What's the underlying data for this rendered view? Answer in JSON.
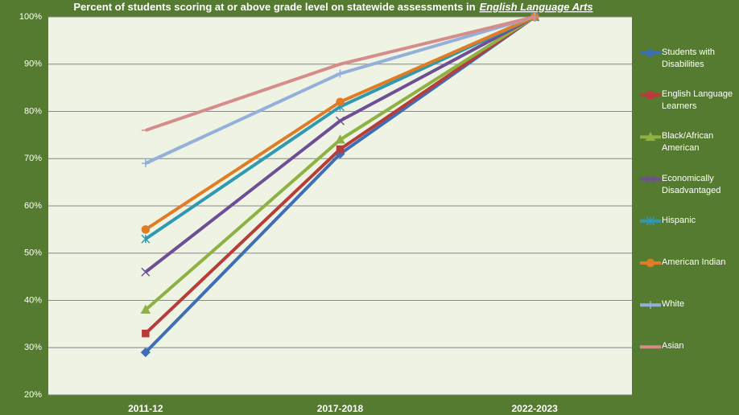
{
  "chart_data": {
    "type": "line",
    "title": {
      "text": "Percent of students scoring at or above grade level on statewide assessments in",
      "emphasis": "English Language Arts"
    },
    "categories": [
      "2011-12",
      "2017-2018",
      "2022-2023"
    ],
    "ylim": [
      20,
      100
    ],
    "yticks": [
      {
        "value": 20,
        "label": "20%"
      },
      {
        "value": 30,
        "label": "30%"
      },
      {
        "value": 40,
        "label": "40%"
      },
      {
        "value": 50,
        "label": "50%"
      },
      {
        "value": 60,
        "label": "60%"
      },
      {
        "value": 70,
        "label": "70%"
      },
      {
        "value": 80,
        "label": "80%"
      },
      {
        "value": 90,
        "label": "90%"
      },
      {
        "value": 100,
        "label": "100%"
      }
    ],
    "grid": true,
    "legend": "right",
    "series": [
      {
        "name": "Students with Disabilities",
        "color": "#3d6fb6",
        "marker": "diamond",
        "values": [
          29,
          71,
          100
        ]
      },
      {
        "name": "English Language Learners",
        "color": "#b73c3a",
        "marker": "square",
        "values": [
          33,
          72,
          100
        ]
      },
      {
        "name": "Black/African American",
        "color": "#8db143",
        "marker": "triangle",
        "values": [
          38,
          74,
          100
        ]
      },
      {
        "name": "Economically Disadvantaged",
        "color": "#6e4f95",
        "marker": "x",
        "values": [
          46,
          78,
          100
        ]
      },
      {
        "name": "Hispanic",
        "color": "#2f99b2",
        "marker": "star",
        "values": [
          53,
          81,
          100
        ]
      },
      {
        "name": "American Indian",
        "color": "#e07b26",
        "marker": "circle",
        "values": [
          55,
          82,
          100
        ]
      },
      {
        "name": "White",
        "color": "#93afda",
        "marker": "plus",
        "values": [
          69,
          88,
          100
        ]
      },
      {
        "name": "Asian",
        "color": "#d58c8b",
        "marker": "dash",
        "values": [
          76,
          90,
          100
        ]
      }
    ]
  }
}
